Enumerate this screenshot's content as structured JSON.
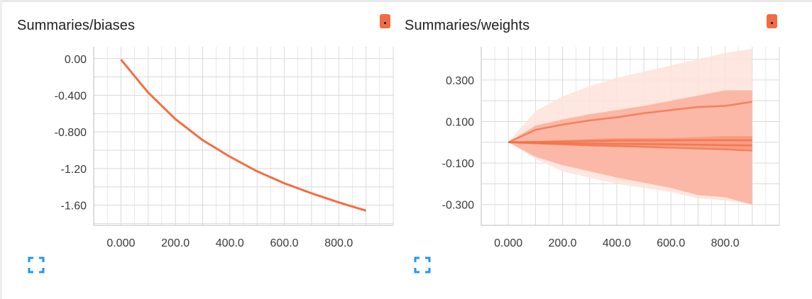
{
  "colors": {
    "line": "#f36d43",
    "band_outer": "#fde3da",
    "band_mid": "#fbb3a0",
    "band_inner": "#f79a80",
    "grid": "#d9d9d9",
    "button": "#f26b43",
    "expand_icon": "#2196f3"
  },
  "icons": {
    "menu": "menu-dot-icon",
    "expand": "fullscreen-expand-icon"
  },
  "chart_data": [
    {
      "type": "line",
      "title": "Summaries/biases",
      "grid": true,
      "xlim": [
        -100,
        1000
      ],
      "ylim": [
        -1.82,
        0.13
      ],
      "x_ticks": [
        0,
        200,
        400,
        600,
        800
      ],
      "x_tick_labels": [
        "0.000",
        "200.0",
        "400.0",
        "600.0",
        "800.0"
      ],
      "y_ticks": [
        0,
        -0.4,
        -0.8,
        -1.2,
        -1.6
      ],
      "y_tick_labels": [
        "0.00",
        "-0.400",
        "-0.800",
        "-1.20",
        "-1.60"
      ],
      "series": [
        {
          "x": [
            0,
            100,
            200,
            300,
            400,
            500,
            600,
            700,
            800,
            900
          ],
          "y": [
            -0.01,
            -0.37,
            -0.66,
            -0.89,
            -1.07,
            -1.23,
            -1.36,
            -1.47,
            -1.57,
            -1.66
          ]
        }
      ]
    },
    {
      "type": "area",
      "title": "Summaries/weights",
      "grid": true,
      "xlim": [
        -100,
        1000
      ],
      "ylim": [
        -0.4,
        0.46
      ],
      "x_ticks": [
        0,
        200,
        400,
        600,
        800
      ],
      "x_tick_labels": [
        "0.000",
        "200.0",
        "400.0",
        "600.0",
        "800.0"
      ],
      "y_ticks": [
        0.3,
        0.1,
        -0.1,
        -0.3
      ],
      "y_tick_labels": [
        "0.300",
        "0.100",
        "-0.100",
        "-0.300"
      ],
      "x": [
        0,
        100,
        200,
        300,
        400,
        500,
        600,
        700,
        800,
        900
      ],
      "bands": [
        {
          "level": "outer",
          "upper": [
            0,
            0.15,
            0.22,
            0.27,
            0.31,
            0.34,
            0.37,
            0.4,
            0.43,
            0.45
          ],
          "lower": [
            0,
            -0.08,
            -0.14,
            -0.17,
            -0.2,
            -0.22,
            -0.24,
            -0.27,
            -0.28,
            -0.3
          ]
        },
        {
          "level": "mid",
          "upper": [
            0,
            0.08,
            0.11,
            0.135,
            0.155,
            0.175,
            0.2,
            0.225,
            0.25,
            0.25
          ],
          "lower": [
            0,
            -0.07,
            -0.11,
            -0.14,
            -0.17,
            -0.195,
            -0.22,
            -0.255,
            -0.265,
            -0.3
          ]
        },
        {
          "level": "inner",
          "upper": [
            0,
            0.005,
            0.01,
            0.015,
            0.02,
            0.02,
            0.02,
            0.025,
            0.03,
            0.03
          ],
          "lower": [
            0,
            -0.005,
            -0.01,
            -0.015,
            -0.02,
            -0.02,
            -0.02,
            -0.025,
            -0.03,
            -0.035
          ]
        }
      ],
      "lines": [
        {
          "y": [
            0,
            0.06,
            0.085,
            0.105,
            0.12,
            0.14,
            0.155,
            0.17,
            0.175,
            0.195
          ]
        },
        {
          "y": [
            0,
            0.002,
            0.004,
            0.006,
            0.008,
            0.009,
            0.01,
            0.01,
            0.01,
            0.01
          ]
        },
        {
          "y": [
            0,
            -0.002,
            -0.004,
            -0.006,
            -0.008,
            -0.009,
            -0.01,
            -0.012,
            -0.014,
            -0.015
          ]
        },
        {
          "y": [
            0,
            -0.005,
            -0.01,
            -0.015,
            -0.018,
            -0.022,
            -0.026,
            -0.03,
            -0.034,
            -0.04
          ]
        }
      ]
    }
  ]
}
